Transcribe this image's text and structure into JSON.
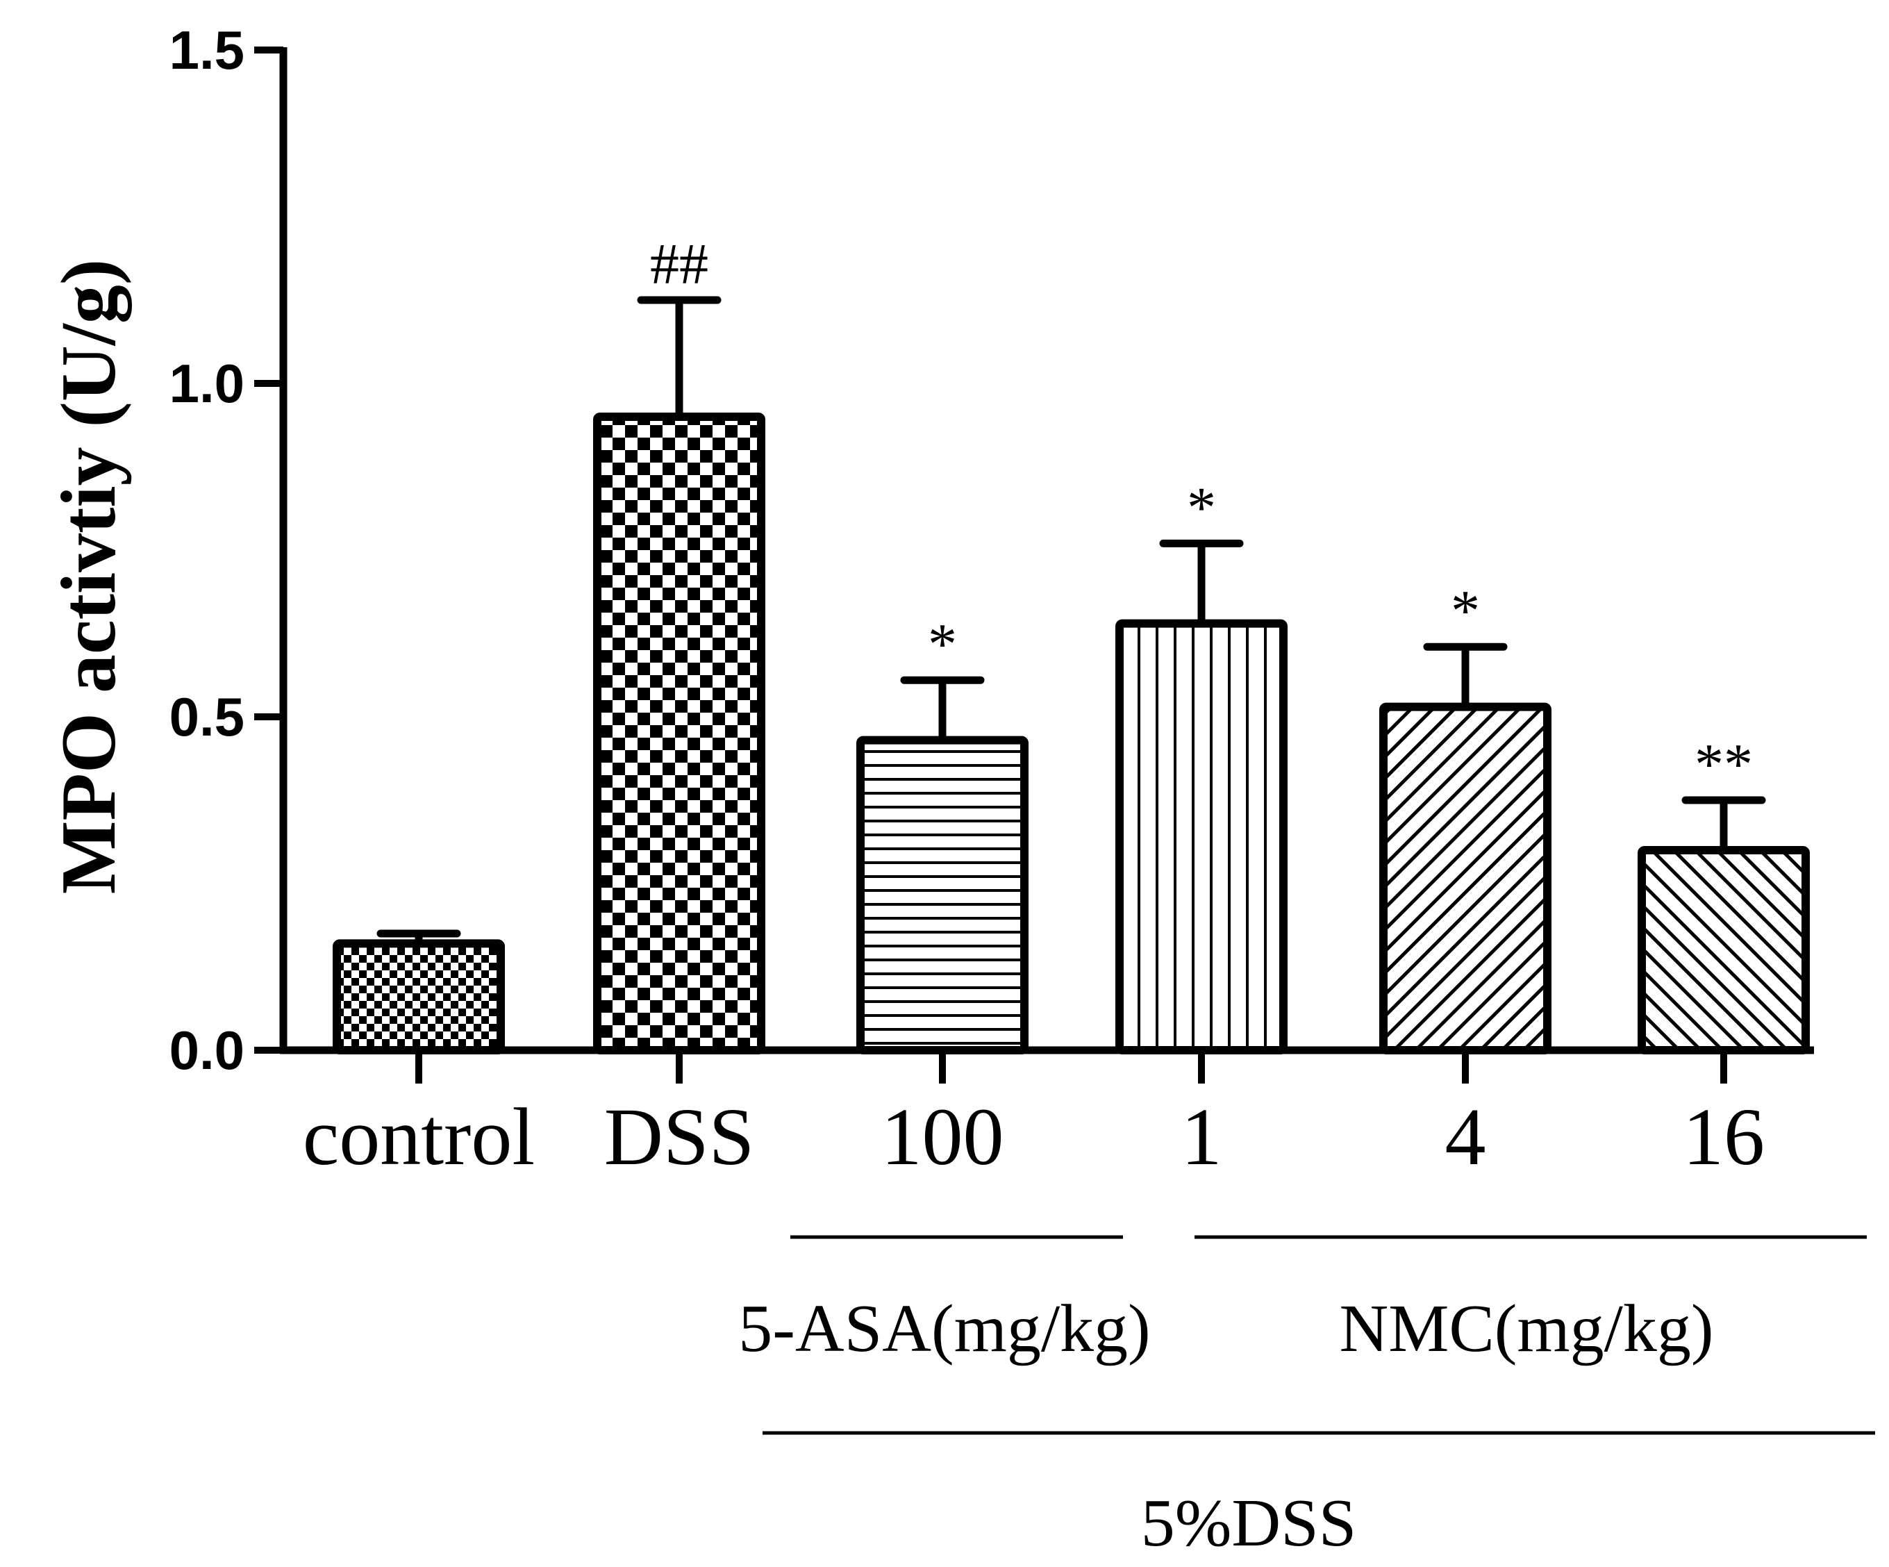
{
  "chart_data": {
    "type": "bar",
    "title": "",
    "xlabel": "",
    "ylabel": "MPO activtiy (U/g)",
    "ylim": [
      0,
      1.5
    ],
    "yticks": [
      "0.0",
      "0.5",
      "1.0",
      "1.5"
    ],
    "categories": [
      "control",
      "DSS",
      "100",
      "1",
      "4",
      "16"
    ],
    "values": [
      0.16,
      0.95,
      0.465,
      0.64,
      0.515,
      0.3
    ],
    "errors": [
      0.015,
      0.175,
      0.09,
      0.12,
      0.09,
      0.075
    ],
    "significance": [
      "",
      "##",
      "*",
      "*",
      "*",
      "**"
    ],
    "patterns": [
      "fine-check",
      "coarse-check",
      "horizontal",
      "vertical",
      "diagonal-right",
      "diagonal-left"
    ],
    "groups": [
      {
        "label": "5-ASA(mg/kg)",
        "categories": [
          "100"
        ]
      },
      {
        "label": "NMC(mg/kg)",
        "categories": [
          "1",
          "4",
          "16"
        ]
      }
    ],
    "outer_group": {
      "label": "5%DSS"
    },
    "legend": "none",
    "grid": false
  }
}
